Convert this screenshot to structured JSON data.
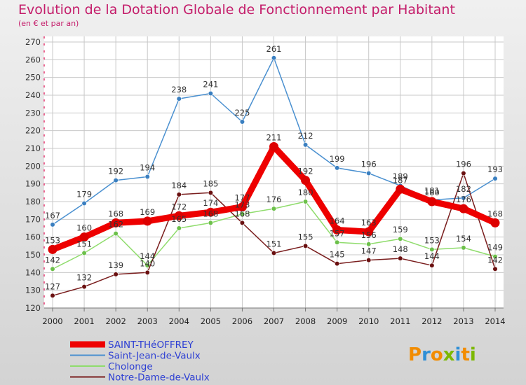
{
  "title": "Evolution de la Dotation Globale de Fonctionnement par Habitant",
  "subtitle": "(en € et par an)",
  "logo": {
    "text": "Proxiti",
    "letters": [
      "P",
      "r",
      "o",
      "x",
      "i",
      "t",
      "i"
    ],
    "colors": [
      "#f28c00",
      "#2e8fd6",
      "#f28c00",
      "#7cb800",
      "#2e8fd6",
      "#f28c00",
      "#7cb800"
    ]
  },
  "chart_data": {
    "type": "line",
    "title": "Evolution de la Dotation Globale de Fonctionnement par Habitant",
    "subtitle": "(en € et par an)",
    "x": [
      "2000",
      "2001",
      "2002",
      "2003",
      "2004",
      "2005",
      "2006",
      "2007",
      "2008",
      "2009",
      "2010",
      "2011",
      "2012",
      "2013",
      "2014"
    ],
    "ylim": [
      120,
      270
    ],
    "yticks": [
      120,
      130,
      140,
      150,
      160,
      170,
      180,
      190,
      200,
      210,
      220,
      230,
      240,
      250,
      260,
      270
    ],
    "grid": true,
    "legend": "bottom-left",
    "series": [
      {
        "name": "Saint-Jean-de-Vaulx",
        "color": "#4a90d0",
        "marker": "#3a7fc0",
        "values": [
          167,
          179,
          192,
          194,
          238,
          241,
          225,
          261,
          212,
          199,
          196,
          189,
          181,
          182,
          193
        ]
      },
      {
        "name": "Cholonge",
        "color": "#8fdc6c",
        "marker": "#6cc04a",
        "values": [
          142,
          151,
          162,
          144,
          165,
          168,
          173,
          176,
          180,
          157,
          156,
          159,
          153,
          154,
          149
        ]
      },
      {
        "name": "Notre-Dame-de-Vaulx",
        "color": "#7a1e1e",
        "marker": "#6a1010",
        "values": [
          127,
          132,
          139,
          140,
          184,
          185,
          168,
          151,
          155,
          145,
          147,
          148,
          144,
          196,
          142
        ]
      },
      {
        "name": "SAINT-THéOFFREY",
        "color": "#ee0000",
        "marker": "#dd0000",
        "bold": true,
        "values": [
          153,
          160,
          168,
          169,
          172,
          174,
          177,
          211,
          192,
          164,
          163,
          187,
          180,
          176,
          168
        ]
      }
    ],
    "legend_order": [
      "SAINT-THéOFFREY",
      "Saint-Jean-de-Vaulx",
      "Cholonge",
      "Notre-Dame-de-Vaulx"
    ]
  }
}
